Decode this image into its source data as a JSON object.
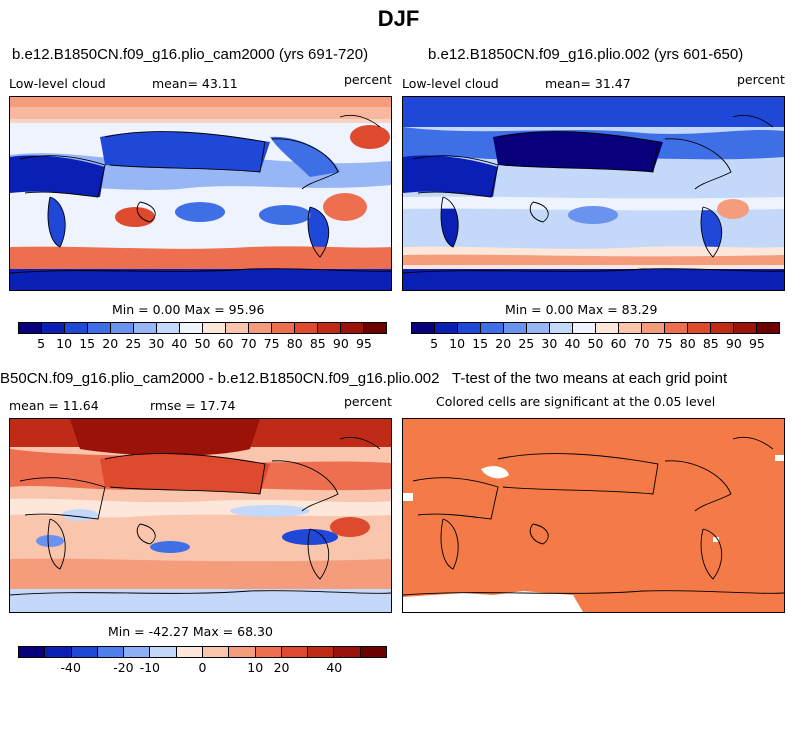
{
  "title": "DJF",
  "panels": [
    {
      "title": "b.e12.B1850CN.f09_g16.plio_cam2000 (yrs 691-720)",
      "left_label": "Low-level cloud",
      "mean_label": "mean=  43.11",
      "unit": "percent",
      "minmax": "Min =   0.00 Max =  95.96",
      "field_mean": 43.11,
      "field_min": 0.0,
      "field_max": 95.96
    },
    {
      "title": "b.e12.B1850CN.f09_g16.plio.002 (yrs 601-650)",
      "left_label": "Low-level cloud",
      "mean_label": "mean=  31.47",
      "unit": "percent",
      "minmax": "Min =   0.00 Max =  83.29",
      "field_mean": 31.47,
      "field_min": 0.0,
      "field_max": 83.29
    },
    {
      "title": "B50CN.f09_g16.plio_cam2000 - b.e12.B1850CN.f09_g16.plio.002",
      "left_label": "mean =  11.64",
      "mean_label": "rmse =  17.74",
      "unit": "percent",
      "minmax": "Min = -42.27 Max =  68.30",
      "field_mean": 11.64,
      "field_min": -42.27,
      "field_max": 68.3
    },
    {
      "title": "T-test of the two means at each grid point",
      "left_label": "Colored cells are significant at the 0.05 level",
      "significance_level": 0.05,
      "significant_color": "#f47a48"
    }
  ],
  "colorbar_abs": {
    "labels": [
      "5",
      "10",
      "15",
      "20",
      "25",
      "30",
      "40",
      "50",
      "60",
      "70",
      "75",
      "80",
      "85",
      "90",
      "95"
    ],
    "colors": [
      "#08007a",
      "#0a1fb4",
      "#1f48d8",
      "#3f6fe6",
      "#6a93f0",
      "#96b6f6",
      "#c4d8fa",
      "#eef3fd",
      "#fde6da",
      "#f9c5ad",
      "#f59c7c",
      "#ee6f4f",
      "#dd4a2e",
      "#c02b18",
      "#9a1208",
      "#6e0000"
    ]
  },
  "colorbar_diff": {
    "labels": [
      "-40",
      "-20",
      "-10",
      "0",
      "10",
      "20",
      "40"
    ],
    "colors": [
      "#08007a",
      "#0a1fb4",
      "#1f48d8",
      "#4f7fec",
      "#8bb0f5",
      "#c4d8fa",
      "#fde6da",
      "#f9c5ad",
      "#f59c7c",
      "#ee6f4f",
      "#dd4a2e",
      "#c02b18",
      "#9a1208",
      "#6e0000"
    ]
  }
}
